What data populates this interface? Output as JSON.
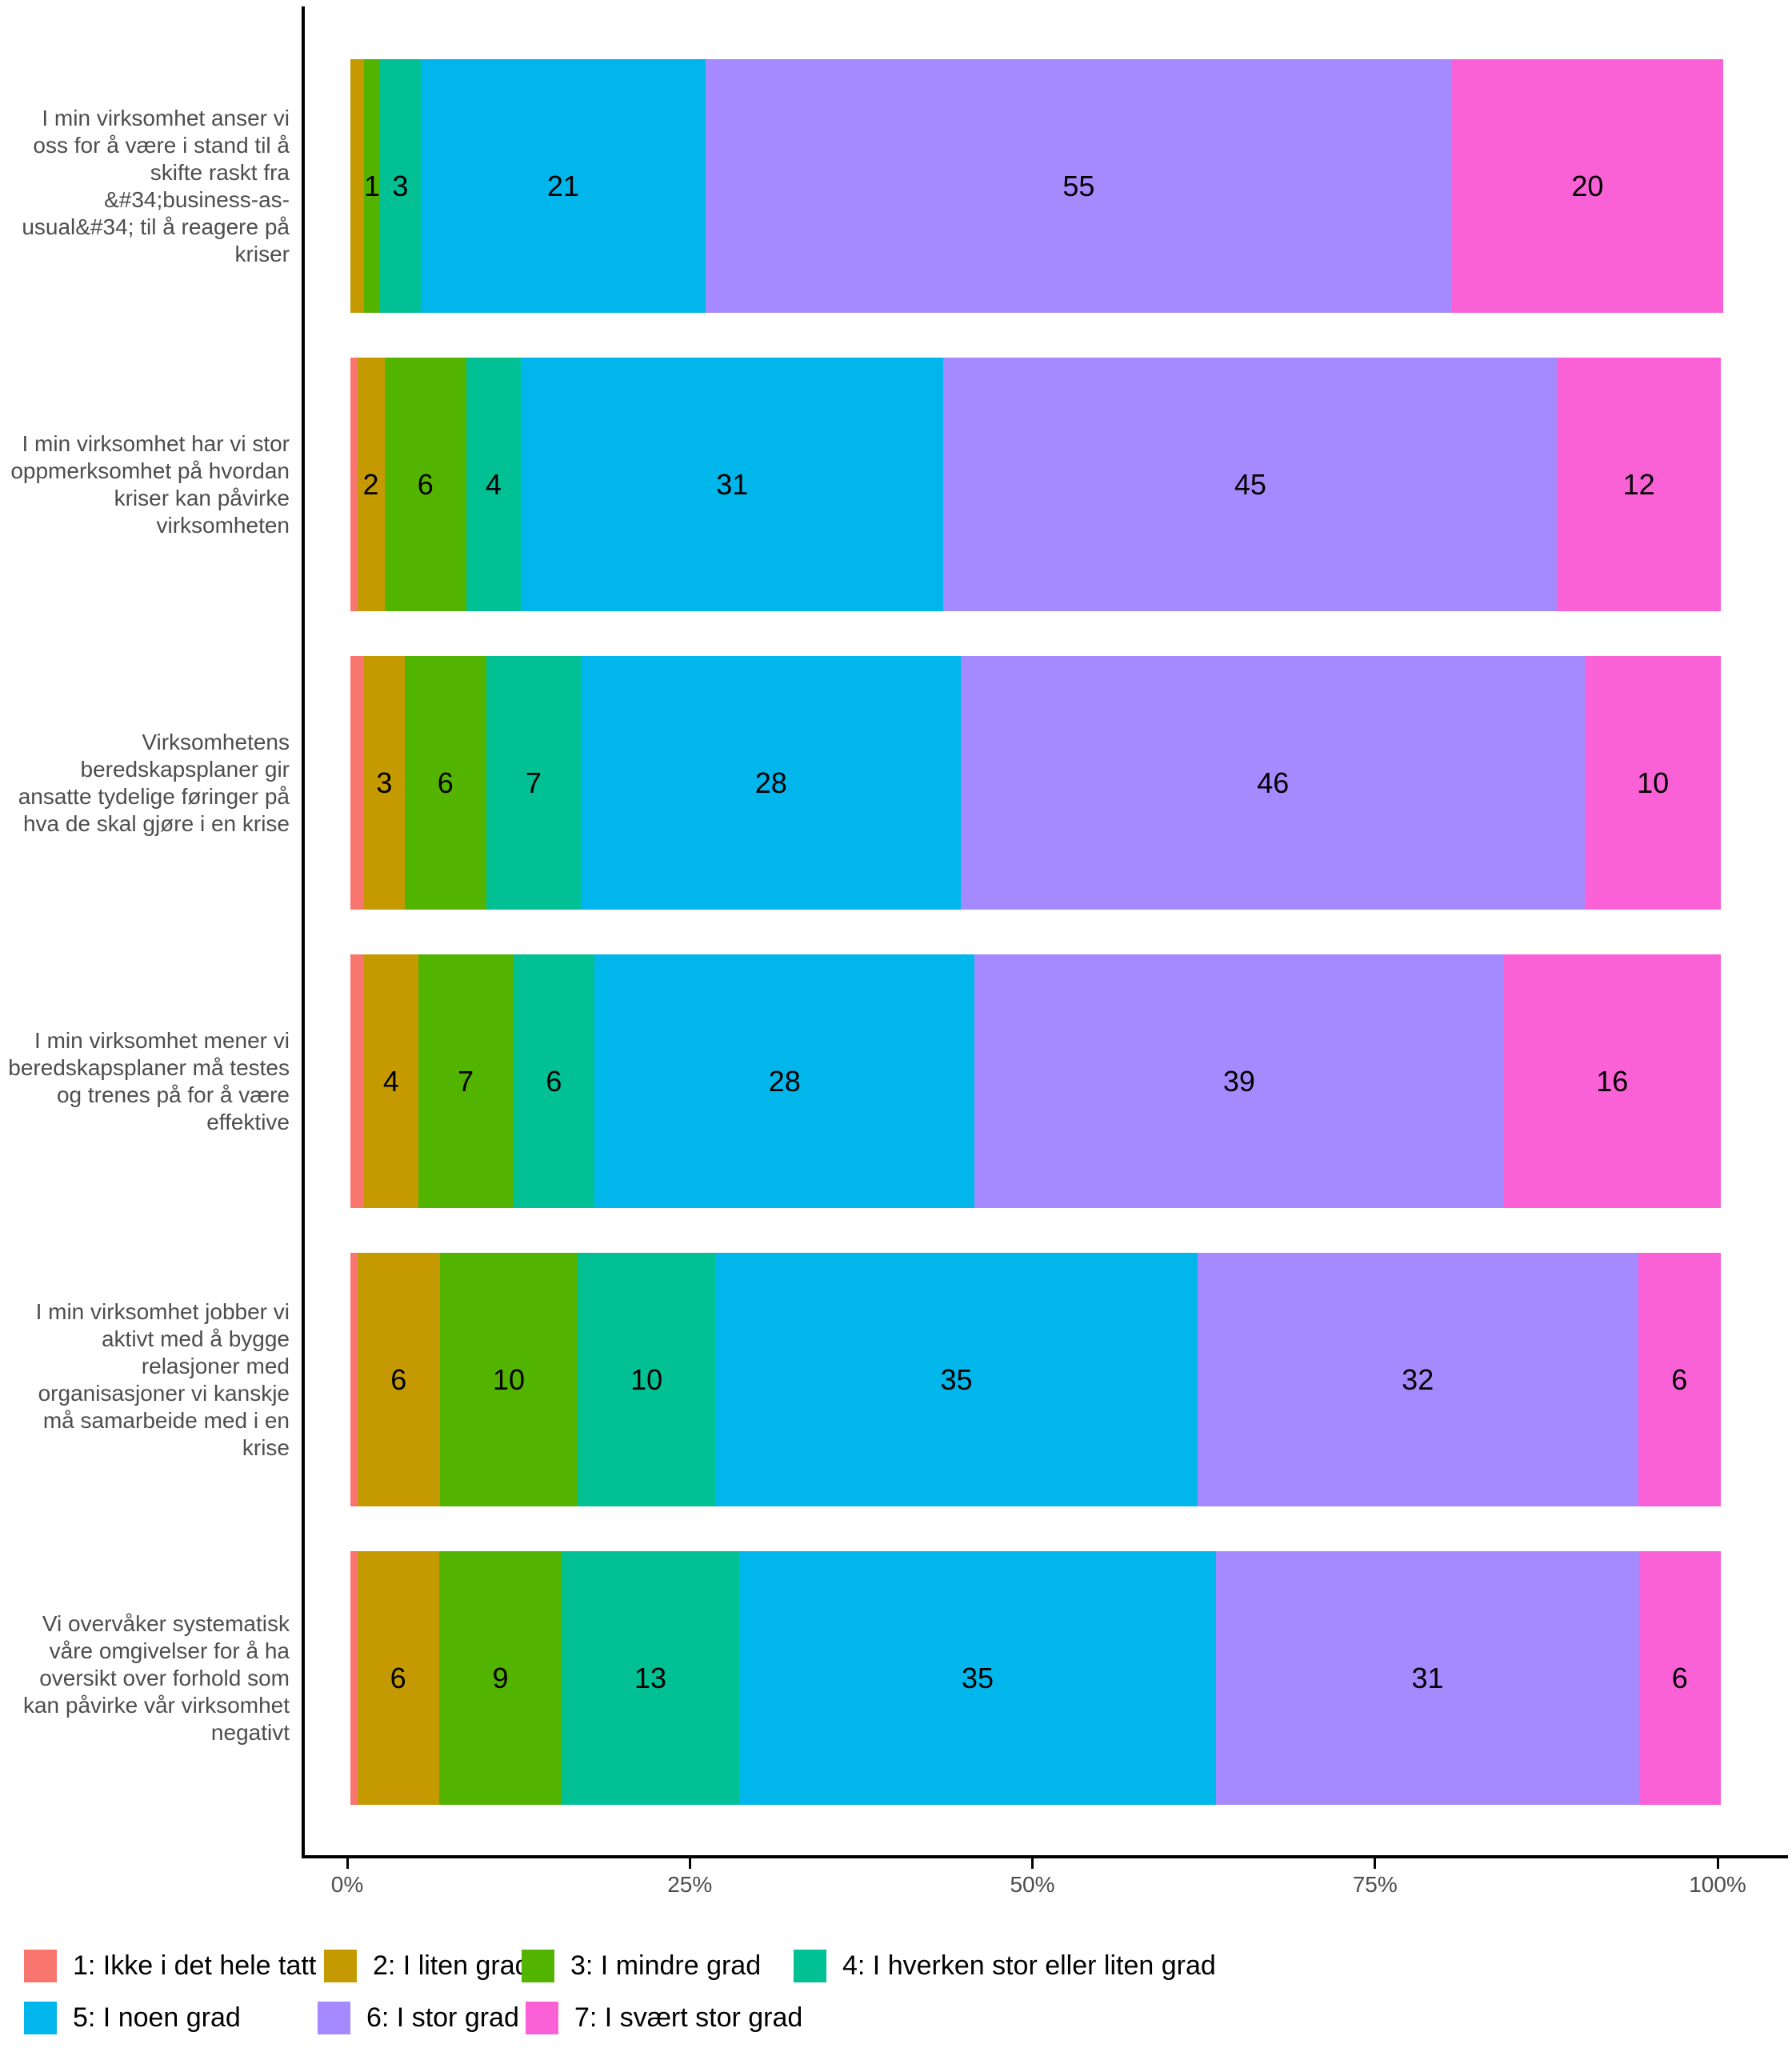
{
  "chart_data": {
    "type": "bar",
    "variant": "horizontal_stacked_percent",
    "title": "",
    "xlabel": "",
    "ylabel": "",
    "x_axis": {
      "ticks": [
        "0%",
        "25%",
        "50%",
        "75%",
        "100%"
      ],
      "range_pct": [
        0,
        100
      ],
      "grid": false
    },
    "legend_position": "bottom",
    "categories": [
      {
        "id": 1,
        "label": "1: Ikke i det hele tatt",
        "color": "#F8766D"
      },
      {
        "id": 2,
        "label": "2: I liten grad",
        "color": "#C49A00"
      },
      {
        "id": 3,
        "label": "3: I mindre grad",
        "color": "#53B400"
      },
      {
        "id": 4,
        "label": "4: I hverken stor eller liten grad",
        "color": "#00C094"
      },
      {
        "id": 5,
        "label": "5: I noen grad",
        "color": "#00B6EB"
      },
      {
        "id": 6,
        "label": "6: I stor grad",
        "color": "#A58AFF"
      },
      {
        "id": 7,
        "label": "7: I svært stor grad",
        "color": "#FB61D7"
      }
    ],
    "rows": [
      {
        "label": "I min virksomhet anser vi oss for å være i stand til å skifte raskt fra &#34;business-as-usual&#34; til å reagere på kriser",
        "segments": [
          {
            "category": 2,
            "value": 1,
            "label": ""
          },
          {
            "category": 3,
            "value": 1,
            "label": "1"
          },
          {
            "category": 4,
            "value": 3,
            "label": "3"
          },
          {
            "category": 5,
            "value": 21,
            "label": "21"
          },
          {
            "category": 6,
            "value": 55,
            "label": "55"
          },
          {
            "category": 7,
            "value": 20,
            "label": "20"
          }
        ]
      },
      {
        "label": "I min virksomhet har vi stor oppmerksomhet på hvordan kriser kan påvirke virksomheten",
        "segments": [
          {
            "category": 1,
            "value": 0.5,
            "label": ""
          },
          {
            "category": 2,
            "value": 2,
            "label": "2"
          },
          {
            "category": 3,
            "value": 6,
            "label": "6"
          },
          {
            "category": 4,
            "value": 4,
            "label": "4"
          },
          {
            "category": 5,
            "value": 31,
            "label": "31"
          },
          {
            "category": 6,
            "value": 45,
            "label": "45"
          },
          {
            "category": 7,
            "value": 12,
            "label": "12"
          }
        ]
      },
      {
        "label": "Virksomhetens beredskapsplaner gir ansatte tydelige føringer på hva de skal gjøre i en krise",
        "segments": [
          {
            "category": 1,
            "value": 1,
            "label": ""
          },
          {
            "category": 2,
            "value": 3,
            "label": "3"
          },
          {
            "category": 3,
            "value": 6,
            "label": "6"
          },
          {
            "category": 4,
            "value": 7,
            "label": "7"
          },
          {
            "category": 5,
            "value": 28,
            "label": "28"
          },
          {
            "category": 6,
            "value": 46,
            "label": "46"
          },
          {
            "category": 7,
            "value": 10,
            "label": "10"
          }
        ]
      },
      {
        "label": "I min virksomhet mener vi beredskapsplaner må testes og trenes på for å være effektive",
        "segments": [
          {
            "category": 1,
            "value": 1,
            "label": ""
          },
          {
            "category": 2,
            "value": 4,
            "label": "4"
          },
          {
            "category": 3,
            "value": 7,
            "label": "7"
          },
          {
            "category": 4,
            "value": 6,
            "label": "6"
          },
          {
            "category": 5,
            "value": 28,
            "label": "28"
          },
          {
            "category": 6,
            "value": 39,
            "label": "39"
          },
          {
            "category": 7,
            "value": 16,
            "label": "16"
          }
        ]
      },
      {
        "label": "I min virksomhet jobber vi aktivt med å bygge relasjoner med organisasjoner vi kanskje må samarbeide med i en krise",
        "segments": [
          {
            "category": 1,
            "value": 0.5,
            "label": ""
          },
          {
            "category": 2,
            "value": 6,
            "label": "6"
          },
          {
            "category": 3,
            "value": 10,
            "label": "10"
          },
          {
            "category": 4,
            "value": 10,
            "label": "10"
          },
          {
            "category": 5,
            "value": 35,
            "label": "35"
          },
          {
            "category": 6,
            "value": 32,
            "label": "32"
          },
          {
            "category": 7,
            "value": 6,
            "label": "6"
          }
        ]
      },
      {
        "label": "Vi overvåker systematisk våre omgivelser for å ha oversikt over forhold som kan påvirke vår virksomhet negativt",
        "segments": [
          {
            "category": 1,
            "value": 0.5,
            "label": ""
          },
          {
            "category": 2,
            "value": 6,
            "label": "6"
          },
          {
            "category": 3,
            "value": 9,
            "label": "9"
          },
          {
            "category": 4,
            "value": 13,
            "label": "13"
          },
          {
            "category": 5,
            "value": 35,
            "label": "35"
          },
          {
            "category": 6,
            "value": 31,
            "label": "31"
          },
          {
            "category": 7,
            "value": 6,
            "label": "6"
          }
        ]
      }
    ]
  }
}
